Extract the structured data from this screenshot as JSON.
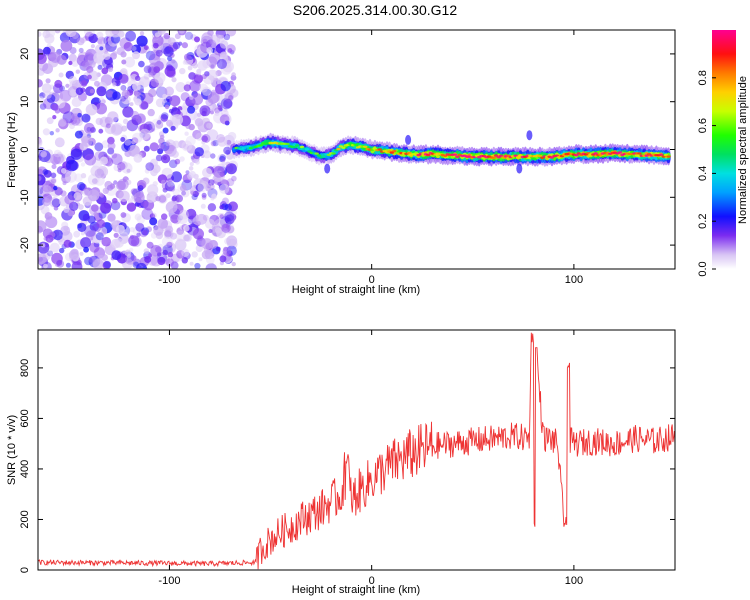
{
  "title": "S206.2025.314.00.30.G12",
  "colors": {
    "snr_line": "#ee3333",
    "frame": "#000000"
  },
  "chart_data": [
    {
      "type": "heatmap",
      "name": "spectrogram",
      "xlabel": "Height of straight line (km)",
      "ylabel": "Frequency (Hz)",
      "xlim": [
        -165,
        150
      ],
      "ylim": [
        -25,
        25
      ],
      "xticks": [
        -100,
        0,
        100
      ],
      "yticks": [
        -20,
        -10,
        0,
        10,
        20
      ],
      "noise_region_x": [
        -165,
        -68
      ],
      "ridge": {
        "x": [
          -68,
          -60,
          -50,
          -42,
          -35,
          -30,
          -25,
          -20,
          -15,
          -10,
          -5,
          0,
          10,
          20,
          30,
          40,
          50,
          60,
          70,
          80,
          90,
          100,
          110,
          120,
          130,
          140,
          148
        ],
        "freq": [
          0,
          0.5,
          1.5,
          1,
          0.5,
          -0.5,
          -1.5,
          -1,
          0.5,
          1,
          0.5,
          0,
          -0.5,
          -1,
          -1,
          -1.2,
          -1.5,
          -1.5,
          -1.5,
          -1.5,
          -1.5,
          -1,
          -1,
          -0.8,
          -1,
          -1.2,
          -1.5
        ],
        "amp": [
          0.4,
          0.5,
          0.6,
          0.55,
          0.5,
          0.45,
          0.5,
          0.55,
          0.6,
          0.65,
          0.7,
          0.75,
          0.8,
          0.85,
          0.9,
          0.9,
          0.95,
          0.95,
          0.9,
          0.85,
          0.9,
          0.9,
          0.95,
          0.95,
          0.9,
          0.9,
          0.85
        ]
      },
      "colorbar": {
        "label": "Normalized spectral amplitude",
        "ticks": [
          "0.0",
          "0.2",
          "0.4",
          "0.6",
          "0.8"
        ],
        "range": [
          0,
          1
        ]
      }
    },
    {
      "type": "line",
      "name": "snr",
      "xlabel": "Height of straight line (km)",
      "ylabel": "SNR (10 * v/v)",
      "xlim": [
        -165,
        150
      ],
      "ylim": [
        0,
        950
      ],
      "xticks": [
        -100,
        0,
        100
      ],
      "yticks": [
        0,
        200,
        400,
        600,
        800
      ],
      "series": [
        {
          "name": "SNR",
          "x": [
            -165,
            -120,
            -80,
            -57,
            -55,
            -50,
            -45,
            -40,
            -35,
            -30,
            -25,
            -20,
            -15,
            -12,
            -10,
            -5,
            0,
            10,
            20,
            30,
            40,
            50,
            60,
            70,
            78,
            79,
            80,
            82,
            85,
            88,
            92,
            95,
            96,
            97,
            100,
            110,
            120,
            130,
            140,
            150
          ],
          "y": [
            30,
            28,
            25,
            30,
            80,
            120,
            150,
            170,
            200,
            220,
            240,
            270,
            300,
            400,
            280,
            320,
            360,
            420,
            460,
            490,
            500,
            510,
            520,
            530,
            520,
            930,
            250,
            800,
            520,
            520,
            500,
            180,
            800,
            520,
            500,
            510,
            500,
            520,
            510,
            530
          ]
        }
      ]
    }
  ]
}
